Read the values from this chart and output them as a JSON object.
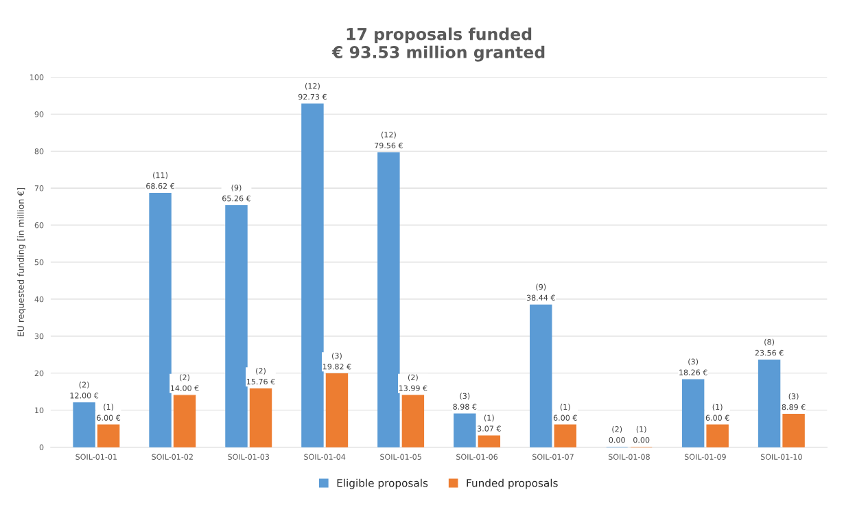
{
  "chart_data": {
    "type": "bar",
    "title": "17 proposals funded\n€ 93.53 million granted",
    "ylabel": "EU requested funding [in million €]",
    "categories": [
      "SOIL-01-01",
      "SOIL-01-02",
      "SOIL-01-03",
      "SOIL-01-04",
      "SOIL-01-05",
      "SOIL-01-06",
      "SOIL-01-07",
      "SOIL-01-08",
      "SOIL-01-09",
      "SOIL-01-10"
    ],
    "series": [
      {
        "name": "Eligible proposals",
        "color": "#5b9bd5",
        "values": [
          12.0,
          68.62,
          65.26,
          92.73,
          79.56,
          8.98,
          38.44,
          0.0,
          18.26,
          23.56
        ],
        "value_labels": [
          "(2)\n12.00 €",
          "(11)\n68.62 €",
          "(9)\n65.26 €",
          "(12)\n92.73 €",
          "(12)\n79.56 €",
          "(3)\n8.98 €",
          "(9)\n38.44 €",
          "(2)\n0.00",
          "(3)\n18.26 €",
          "(8)\n23.56 €"
        ]
      },
      {
        "name": "Funded proposals",
        "color": "#ed7d31",
        "values": [
          6.0,
          14.0,
          15.76,
          19.82,
          13.99,
          3.07,
          6.0,
          0.0,
          6.0,
          8.89
        ],
        "value_labels": [
          "(1)\n6.00 €",
          "(2)\n14.00 €",
          "(2)\n15.76 €",
          "(3)\n19.82 €",
          "(2)\n13.99 €",
          "(1)\n3.07 €",
          "(1)\n6.00 €",
          "(1)\n0.00",
          "(1)\n6.00 €",
          "(3)\n8.89 €"
        ]
      }
    ],
    "ylim": [
      0,
      100
    ],
    "yticks": [
      0,
      10,
      20,
      30,
      40,
      50,
      60,
      70,
      80,
      90,
      100
    ],
    "grid": "y",
    "legend": "bottom"
  }
}
